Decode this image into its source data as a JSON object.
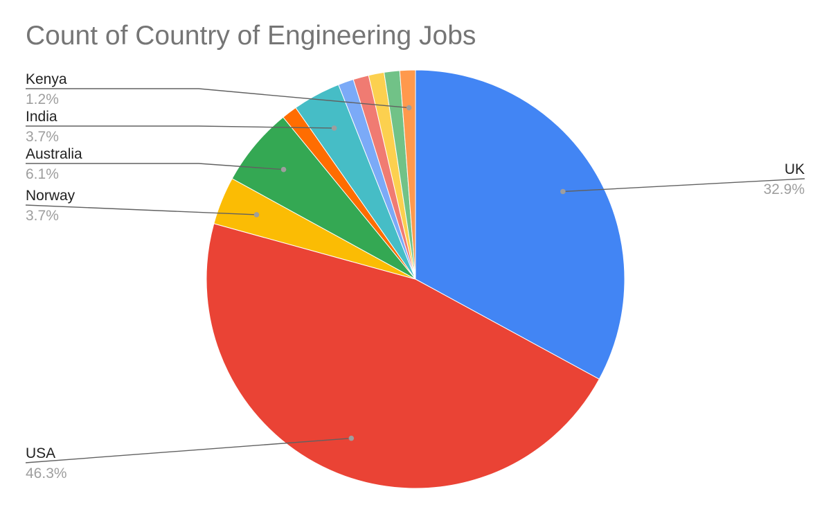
{
  "chart_data": {
    "type": "pie",
    "title": "Count of Country of Engineering Jobs",
    "slices": [
      {
        "label": "UK",
        "value": 32.9,
        "display": "32.9%",
        "color": "#4285F4",
        "labeled": true
      },
      {
        "label": "USA",
        "value": 46.3,
        "display": "46.3%",
        "color": "#EA4335",
        "labeled": true
      },
      {
        "label": "Norway",
        "value": 3.7,
        "display": "3.7%",
        "color": "#FBBC04",
        "labeled": true
      },
      {
        "label": "Australia",
        "value": 6.1,
        "display": "6.1%",
        "color": "#34A853",
        "labeled": true
      },
      {
        "label": "",
        "value": 1.2,
        "display": "",
        "color": "#FF6D01",
        "labeled": false
      },
      {
        "label": "India",
        "value": 3.7,
        "display": "3.7%",
        "color": "#46BDC6",
        "labeled": true
      },
      {
        "label": "",
        "value": 1.2,
        "display": "",
        "color": "#7BAAF7",
        "labeled": false
      },
      {
        "label": "",
        "value": 1.2,
        "display": "",
        "color": "#F07B72",
        "labeled": false
      },
      {
        "label": "",
        "value": 1.2,
        "display": "",
        "color": "#FCD04F",
        "labeled": false
      },
      {
        "label": "",
        "value": 1.2,
        "display": "",
        "color": "#71C287",
        "labeled": false
      },
      {
        "label": "Kenya",
        "value": 1.2,
        "display": "1.2%",
        "color": "#FF994D",
        "labeled": true
      }
    ],
    "start_angle": "12 o'clock",
    "direction": "clockwise",
    "legend": "none"
  }
}
